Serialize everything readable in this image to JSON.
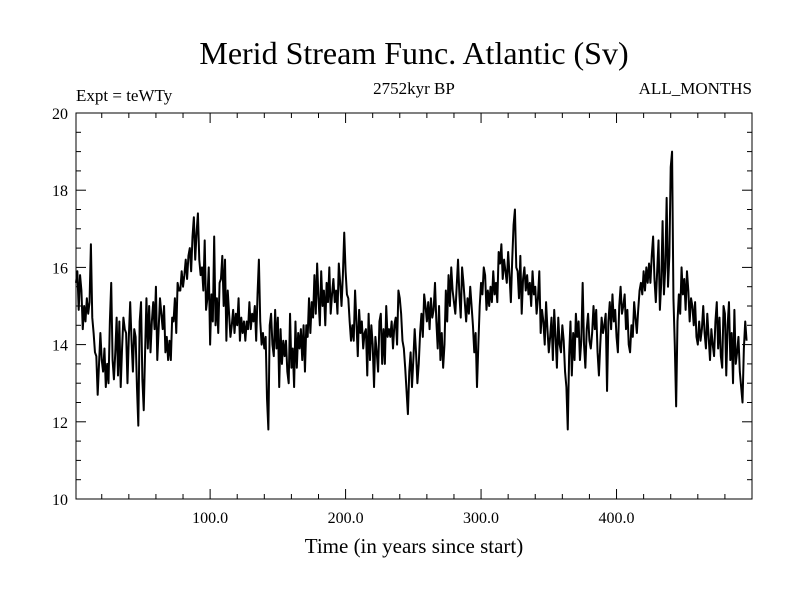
{
  "chart_data": {
    "type": "line",
    "title": "Merid Stream Func. Atlantic (Sv)",
    "left_label": "Expt = teWTy",
    "center_label": "2752kyr BP",
    "right_label": "ALL_MONTHS",
    "xlabel": "Time (in years since start)",
    "ylabel": "",
    "xlim": [
      1,
      500
    ],
    "ylim": [
      10,
      20
    ],
    "x_ticks": [
      100,
      200,
      300,
      400
    ],
    "x_tick_labels": [
      "100.0",
      "200.0",
      "300.0",
      "400.0"
    ],
    "y_ticks": [
      10,
      12,
      14,
      16,
      18,
      20
    ],
    "y_tick_labels": [
      "10",
      "12",
      "14",
      "16",
      "18",
      "20"
    ],
    "grid": false,
    "series": [
      {
        "name": "Merid Stream Func. Atlantic",
        "x_start": 1,
        "x_step": 1,
        "values": [
          15.6,
          15.9,
          14.9,
          15.8,
          15.4,
          14.4,
          15.0,
          14.6,
          15.2,
          14.8,
          15.1,
          16.6,
          14.7,
          14.3,
          13.8,
          13.7,
          12.7,
          13.5,
          14.3,
          13.6,
          13.3,
          13.9,
          12.9,
          13.5,
          13.0,
          14.6,
          15.6,
          13.6,
          13.1,
          13.8,
          14.7,
          13.2,
          14.6,
          12.9,
          13.9,
          14.7,
          14.4,
          14.3,
          13.0,
          14.2,
          15.1,
          14.1,
          13.3,
          14.4,
          14.2,
          12.9,
          11.9,
          14.6,
          15.1,
          13.1,
          12.3,
          13.8,
          15.2,
          13.9,
          15.0,
          13.8,
          14.6,
          15.1,
          14.4,
          15.5,
          13.6,
          14.4,
          15.2,
          14.8,
          14.4,
          15.0,
          13.8,
          14.2,
          13.6,
          14.1,
          13.6,
          14.7,
          14.6,
          15.2,
          14.3,
          15.6,
          15.4,
          15.4,
          15.9,
          15.5,
          15.8,
          16.2,
          15.7,
          16.3,
          16.5,
          15.9,
          16.8,
          17.3,
          16.2,
          16.9,
          17.4,
          16.2,
          15.8,
          16.0,
          15.4,
          16.7,
          14.9,
          15.2,
          16.0,
          14.0,
          15.3,
          14.6,
          16.8,
          14.5,
          15.2,
          14.3,
          15.6,
          15.7,
          16.3,
          15.0,
          16.2,
          14.1,
          15.4,
          14.8,
          14.2,
          14.5,
          14.9,
          14.3,
          14.8,
          14.5,
          15.2,
          14.1,
          14.7,
          14.3,
          14.6,
          14.1,
          14.6,
          14.4,
          15.1,
          14.4,
          14.8,
          14.6,
          15.0,
          14.1,
          15.3,
          16.2,
          14.6,
          14.0,
          14.3,
          13.9,
          14.2,
          12.6,
          11.8,
          14.5,
          14.8,
          14.0,
          13.7,
          14.9,
          13.9,
          14.7,
          12.9,
          14.4,
          13.5,
          14.1,
          13.7,
          14.1,
          13.3,
          13.0,
          14.8,
          13.4,
          13.9,
          12.9,
          14.6,
          13.4,
          14.3,
          13.9,
          14.4,
          13.6,
          14.5,
          13.3,
          14.5,
          14.2,
          15.2,
          14.3,
          15.1,
          14.7,
          15.8,
          14.8,
          16.1,
          15.2,
          14.5,
          15.9,
          15.0,
          15.4,
          14.5,
          15.6,
          15.1,
          16.0,
          14.8,
          15.3,
          15.7,
          15.1,
          15.4,
          14.8,
          16.1,
          15.6,
          15.0,
          15.8,
          16.9,
          15.9,
          15.3,
          15.2,
          14.6,
          14.1,
          14.5,
          14.1,
          15.4,
          14.6,
          13.7,
          14.9,
          14.3,
          14.6,
          13.9,
          14.3,
          14.4,
          13.2,
          14.8,
          13.6,
          14.5,
          14.0,
          12.9,
          14.2,
          13.8,
          13.3,
          14.6,
          14.8,
          13.5,
          14.4,
          13.5,
          15.0,
          14.2,
          14.4,
          14.2,
          14.6,
          13.9,
          14.5,
          14.7,
          14.0,
          15.4,
          15.2,
          14.8,
          14.1,
          13.9,
          13.4,
          12.8,
          12.2,
          13.3,
          13.8,
          12.9,
          13.6,
          14.4,
          13.8,
          13.0,
          13.5,
          14.3,
          14.8,
          14.2,
          15.3,
          15.0,
          14.6,
          15.1,
          14.4,
          15.2,
          14.7,
          14.9,
          15.6,
          14.6,
          13.9,
          15.0,
          13.6,
          14.3,
          13.4,
          14.0,
          15.4,
          14.6,
          15.8,
          15.0,
          16.0,
          15.4,
          15.1,
          14.8,
          15.5,
          16.2,
          15.3,
          14.7,
          16.0,
          15.6,
          15.1,
          14.6,
          15.2,
          14.8,
          15.5,
          15.0,
          14.5,
          13.8,
          14.3,
          12.9,
          14.0,
          15.0,
          15.6,
          15.3,
          16.0,
          15.8,
          14.9,
          15.4,
          15.0,
          15.5,
          15.1,
          15.9,
          15.3,
          15.6,
          15.1,
          16.4,
          16.1,
          16.6,
          15.7,
          16.2,
          15.9,
          15.6,
          16.4,
          15.8,
          15.1,
          16.2,
          17.1,
          17.5,
          16.0,
          15.9,
          15.2,
          16.3,
          14.8,
          15.7,
          16.0,
          15.4,
          15.8,
          15.3,
          15.6,
          15.0,
          15.9,
          15.3,
          15.5,
          14.8,
          15.2,
          15.9,
          14.3,
          14.9,
          14.6,
          14.0,
          15.1,
          14.4,
          13.8,
          14.2,
          14.7,
          13.6,
          14.9,
          14.2,
          13.4,
          14.7,
          14.0,
          13.8,
          14.5,
          14.1,
          13.3,
          12.9,
          11.8,
          13.7,
          14.6,
          13.2,
          14.3,
          13.6,
          14.8,
          14.2,
          14.6,
          13.6,
          14.1,
          15.6,
          14.0,
          13.4,
          14.4,
          14.8,
          14.1,
          13.9,
          14.3,
          15.0,
          14.4,
          14.9,
          13.8,
          13.2,
          14.0,
          14.7,
          14.3,
          14.5,
          14.8,
          12.8,
          14.6,
          15.1,
          14.4,
          15.3,
          14.6,
          14.9,
          14.2,
          13.8,
          15.0,
          15.5,
          14.8,
          15.0,
          15.3,
          14.4,
          14.9,
          14.0,
          13.8,
          14.5,
          14.2,
          15.1,
          14.7,
          14.3,
          14.9,
          15.4,
          15.6,
          15.3,
          15.9,
          15.4,
          16.0,
          15.6,
          16.1,
          15.6,
          16.3,
          16.8,
          15.7,
          15.1,
          15.9,
          16.7,
          14.9,
          15.6,
          17.2,
          15.3,
          16.0,
          17.8,
          15.5,
          16.3,
          18.6,
          19.0,
          15.2,
          14.0,
          12.4,
          14.6,
          15.3,
          14.8,
          16.0,
          15.3,
          15.7,
          14.9,
          15.9,
          15.4,
          14.6,
          15.2,
          15.0,
          14.5,
          15.1,
          14.2,
          14.0,
          14.6,
          14.1,
          14.4,
          15.0,
          14.3,
          13.9,
          14.8,
          14.2,
          13.6,
          14.4,
          14.0,
          13.7,
          14.6,
          15.1,
          13.9,
          14.7,
          13.7,
          13.4,
          15.0,
          14.8,
          13.2,
          14.5,
          15.1,
          13.6,
          14.3,
          13.0,
          14.9,
          13.5,
          13.8,
          14.2,
          13.3,
          12.9,
          12.5,
          13.9,
          14.6,
          14.1
        ]
      }
    ]
  }
}
